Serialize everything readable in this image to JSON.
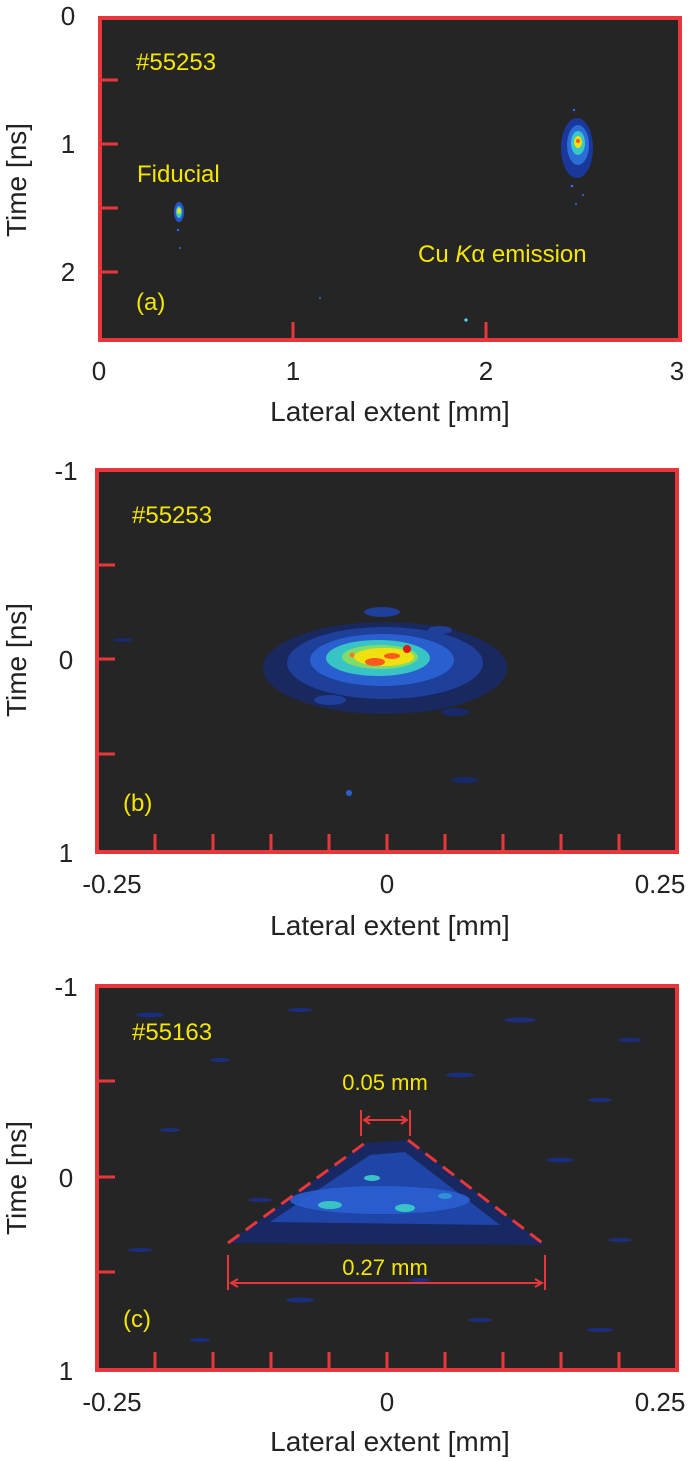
{
  "figure": {
    "panels": [
      {
        "id": "a",
        "panel_label": "(a)",
        "shot_label": "#55253",
        "annotations": {
          "fiducial": "Fiducial",
          "emission_prefix": "Cu ",
          "emission_italic": "K",
          "emission_suffix": "α emission"
        },
        "x_axis_title": "Lateral extent [mm]",
        "y_axis_title": "Time [ns]",
        "x_ticks": [
          "0",
          "1",
          "2",
          "3"
        ],
        "y_ticks": [
          "0",
          "1",
          "2"
        ],
        "x_range": [
          0,
          3
        ],
        "y_range": [
          0,
          2.5
        ]
      },
      {
        "id": "b",
        "panel_label": "(b)",
        "shot_label": "#55253",
        "x_axis_title": "Lateral extent [mm]",
        "y_axis_title": "Time [ns]",
        "x_ticks": [
          "-0.25",
          "0",
          "0.25"
        ],
        "y_ticks": [
          "-1",
          "0",
          "1"
        ],
        "x_range": [
          -0.25,
          0.25
        ],
        "y_range": [
          -1,
          1
        ]
      },
      {
        "id": "c",
        "panel_label": "(c)",
        "shot_label": "#55163",
        "x_axis_title": "Lateral extent [mm]",
        "y_axis_title": "Time [ns]",
        "x_ticks": [
          "-0.25",
          "0",
          "0.25"
        ],
        "y_ticks": [
          "-1",
          "0",
          "1"
        ],
        "x_range": [
          -0.25,
          0.25
        ],
        "y_range": [
          -1,
          1
        ],
        "measurements": {
          "top_width": "0.05 mm",
          "bottom_width": "0.27 mm"
        }
      }
    ],
    "colors": {
      "frame": "#e8363a",
      "background": "#252525",
      "text_overlay": "#f5e600"
    }
  }
}
